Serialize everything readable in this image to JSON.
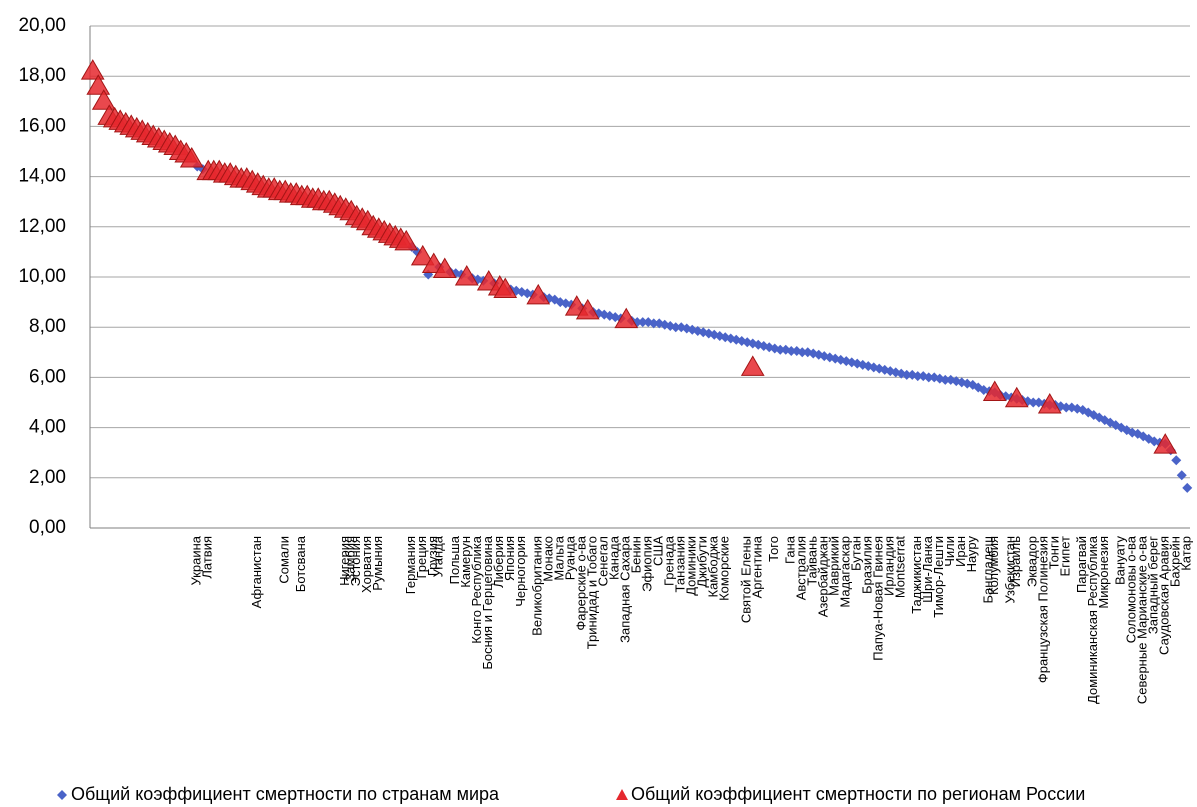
{
  "chart_data": {
    "type": "scatter-category",
    "categories": [
      null,
      null,
      null,
      null,
      null,
      null,
      null,
      null,
      null,
      null,
      null,
      null,
      null,
      null,
      null,
      null,
      null,
      null,
      null,
      "Украина",
      null,
      "Латвия",
      null,
      null,
      null,
      null,
      null,
      null,
      null,
      null,
      "Афганистан",
      null,
      null,
      null,
      null,
      "Сомали",
      null,
      null,
      "Ботсвана",
      null,
      null,
      null,
      null,
      null,
      null,
      null,
      "Нигерия",
      "Замбия",
      "Эстония",
      null,
      "Хорватия",
      null,
      "Румыния",
      null,
      null,
      null,
      null,
      null,
      "Германия",
      null,
      "Греция",
      null,
      "Грузия",
      "Уганда",
      null,
      null,
      "Польша",
      null,
      "Камерун",
      null,
      "Конго Республика",
      null,
      "Босния и Герцеговина",
      null,
      "Либерия",
      null,
      "Япония",
      null,
      "Черногория",
      null,
      null,
      "Великобритания",
      null,
      "Монако",
      null,
      "Мальта",
      null,
      "Руанда",
      null,
      "Фарерские о-ва",
      null,
      "Тринидад и Тобаго",
      null,
      "Сенегал",
      null,
      "Канада",
      null,
      "Западная Сахара",
      null,
      "Бенин",
      null,
      "Эфиопия",
      null,
      "США",
      null,
      "Гренада",
      null,
      "Танзания",
      null,
      "Доминики",
      null,
      "Джибути",
      null,
      "Камбоджа",
      null,
      "Коморские",
      null,
      null,
      null,
      "Святой Елены",
      null,
      "Аргентина",
      null,
      null,
      "Того",
      null,
      null,
      "Гана",
      null,
      "Австралия",
      null,
      "Тайвань",
      null,
      "Азербайджан",
      null,
      "Маврикий",
      null,
      "Мадагаскар",
      null,
      "Бутан",
      null,
      "Бразилия",
      null,
      "Папуа-Новая Гвинея",
      null,
      "Ирландия",
      null,
      "Montserrat",
      null,
      null,
      "Таджикистан",
      null,
      "Шри-Ланка",
      null,
      "Тимор-Лешти",
      null,
      "Чили",
      null,
      "Иран",
      null,
      "Науру",
      null,
      null,
      "Бангладеш",
      "Колумбия",
      null,
      null,
      "Узбекистан",
      "Израиль",
      null,
      null,
      "Эквадор",
      null,
      "Французская Полинезия",
      null,
      "Тонги",
      null,
      "Египет",
      null,
      null,
      "Парагвай",
      null,
      "Доминиканская Республика",
      null,
      "Микронезия",
      null,
      null,
      "Вануату",
      null,
      "Соломоновы о-ва",
      null,
      "Северные Марианские о-ва",
      null,
      "Западный берег",
      null,
      "Саудовская Аравия",
      null,
      "Бахрейн",
      null,
      "Катар"
    ],
    "series": [
      {
        "name": "Общий коэффициент смертности по странам мира",
        "color": "#4a63c8",
        "marker": "diamond",
        "values": [
          null,
          null,
          null,
          null,
          null,
          null,
          null,
          null,
          null,
          null,
          null,
          null,
          null,
          null,
          null,
          null,
          null,
          null,
          null,
          14.4,
          14.3,
          null,
          null,
          null,
          null,
          null,
          null,
          null,
          null,
          null,
          null,
          null,
          null,
          null,
          null,
          null,
          null,
          null,
          null,
          null,
          null,
          null,
          null,
          null,
          null,
          null,
          null,
          null,
          null,
          null,
          null,
          null,
          null,
          null,
          null,
          null,
          null,
          null,
          11.2,
          11.0,
          null,
          10.1,
          null,
          10.4,
          null,
          10.2,
          10.15,
          10.1,
          null,
          9.95,
          9.9,
          9.85,
          null,
          9.75,
          null,
          null,
          9.5,
          9.45,
          9.4,
          9.35,
          9.3,
          null,
          9.2,
          9.15,
          9.1,
          9.0,
          8.95,
          8.9,
          null,
          8.75,
          null,
          8.6,
          8.55,
          8.5,
          8.45,
          8.4,
          8.35,
          null,
          8.25,
          8.2,
          8.2,
          8.2,
          8.15,
          8.15,
          8.1,
          8.05,
          8.0,
          8.0,
          7.95,
          7.9,
          7.85,
          7.8,
          7.75,
          7.7,
          7.65,
          7.6,
          7.55,
          7.5,
          7.45,
          7.4,
          7.35,
          7.3,
          7.25,
          7.2,
          7.15,
          7.1,
          7.1,
          7.05,
          7.05,
          7.0,
          7.0,
          6.95,
          6.9,
          6.85,
          6.8,
          6.75,
          6.7,
          6.65,
          6.6,
          6.55,
          6.5,
          6.45,
          6.4,
          6.35,
          6.3,
          6.25,
          6.2,
          6.15,
          6.1,
          6.1,
          6.05,
          6.05,
          6.0,
          6.0,
          5.95,
          5.9,
          5.9,
          5.85,
          5.8,
          5.75,
          5.7,
          5.6,
          5.5,
          5.45,
          5.4,
          5.3,
          5.25,
          5.2,
          5.15,
          5.1,
          5.05,
          5.0,
          5.0,
          4.95,
          4.9,
          4.9,
          4.85,
          4.8,
          4.8,
          4.75,
          4.7,
          4.6,
          4.5,
          4.4,
          4.3,
          4.2,
          4.1,
          4.0,
          3.9,
          3.8,
          3.75,
          3.65,
          3.55,
          3.45,
          3.4,
          3.35,
          3.1,
          2.7,
          2.1,
          1.6
        ]
      },
      {
        "name": "Общий коэффициент смертности по регионам России",
        "color": "#e5282e",
        "marker": "triangle",
        "values": [
          18.2,
          17.6,
          17.0,
          16.4,
          16.3,
          16.2,
          16.1,
          16.0,
          15.9,
          15.8,
          15.7,
          15.6,
          15.5,
          15.4,
          15.3,
          15.2,
          15.0,
          14.9,
          14.7,
          null,
          null,
          14.2,
          14.2,
          14.2,
          14.1,
          14.1,
          14.0,
          13.9,
          13.9,
          13.8,
          13.7,
          13.6,
          13.5,
          13.5,
          13.4,
          13.4,
          13.3,
          13.3,
          13.2,
          13.2,
          13.1,
          13.1,
          13.0,
          13.0,
          12.9,
          12.8,
          12.7,
          12.6,
          12.4,
          12.3,
          12.2,
          12.0,
          11.9,
          11.8,
          11.7,
          11.6,
          11.5,
          11.4,
          null,
          null,
          10.8,
          null,
          10.5,
          null,
          10.3,
          null,
          null,
          null,
          10.0,
          null,
          null,
          null,
          9.8,
          null,
          9.6,
          9.5,
          null,
          null,
          null,
          null,
          null,
          9.25,
          null,
          null,
          null,
          null,
          null,
          null,
          8.8,
          null,
          8.65,
          null,
          null,
          null,
          null,
          null,
          null,
          8.3,
          null,
          null,
          null,
          null,
          null,
          null,
          null,
          null,
          null,
          null,
          null,
          null,
          null,
          null,
          null,
          null,
          null,
          null,
          null,
          null,
          null,
          null,
          6.4,
          null,
          null,
          null,
          null,
          null,
          null,
          null,
          null,
          null,
          null,
          null,
          null,
          null,
          null,
          null,
          null,
          null,
          null,
          null,
          null,
          null,
          null,
          null,
          null,
          null,
          null,
          null,
          null,
          null,
          null,
          null,
          null,
          null,
          null,
          null,
          null,
          null,
          null,
          null,
          null,
          null,
          null,
          null,
          5.4,
          null,
          null,
          null,
          5.15,
          null,
          null,
          null,
          null,
          null,
          4.9,
          null,
          null,
          null,
          null,
          null,
          null,
          null,
          null,
          null,
          null,
          null,
          null,
          null,
          null,
          null,
          null,
          null,
          null,
          null,
          null,
          3.3,
          null,
          null,
          null,
          null
        ]
      }
    ],
    "ylim": [
      0,
      20
    ],
    "yticks": [
      {
        "value": 0,
        "label": "0,00"
      },
      {
        "value": 2,
        "label": "2,00"
      },
      {
        "value": 4,
        "label": "4,00"
      },
      {
        "value": 6,
        "label": "6,00"
      },
      {
        "value": 8,
        "label": "8,00"
      },
      {
        "value": 10,
        "label": "10,00"
      },
      {
        "value": 12,
        "label": "12,00"
      },
      {
        "value": 14,
        "label": "14,00"
      },
      {
        "value": 16,
        "label": "16,00"
      },
      {
        "value": 18,
        "label": "18,00"
      },
      {
        "value": 20,
        "label": "20,00"
      }
    ],
    "grid": true,
    "legend": "bottom"
  }
}
